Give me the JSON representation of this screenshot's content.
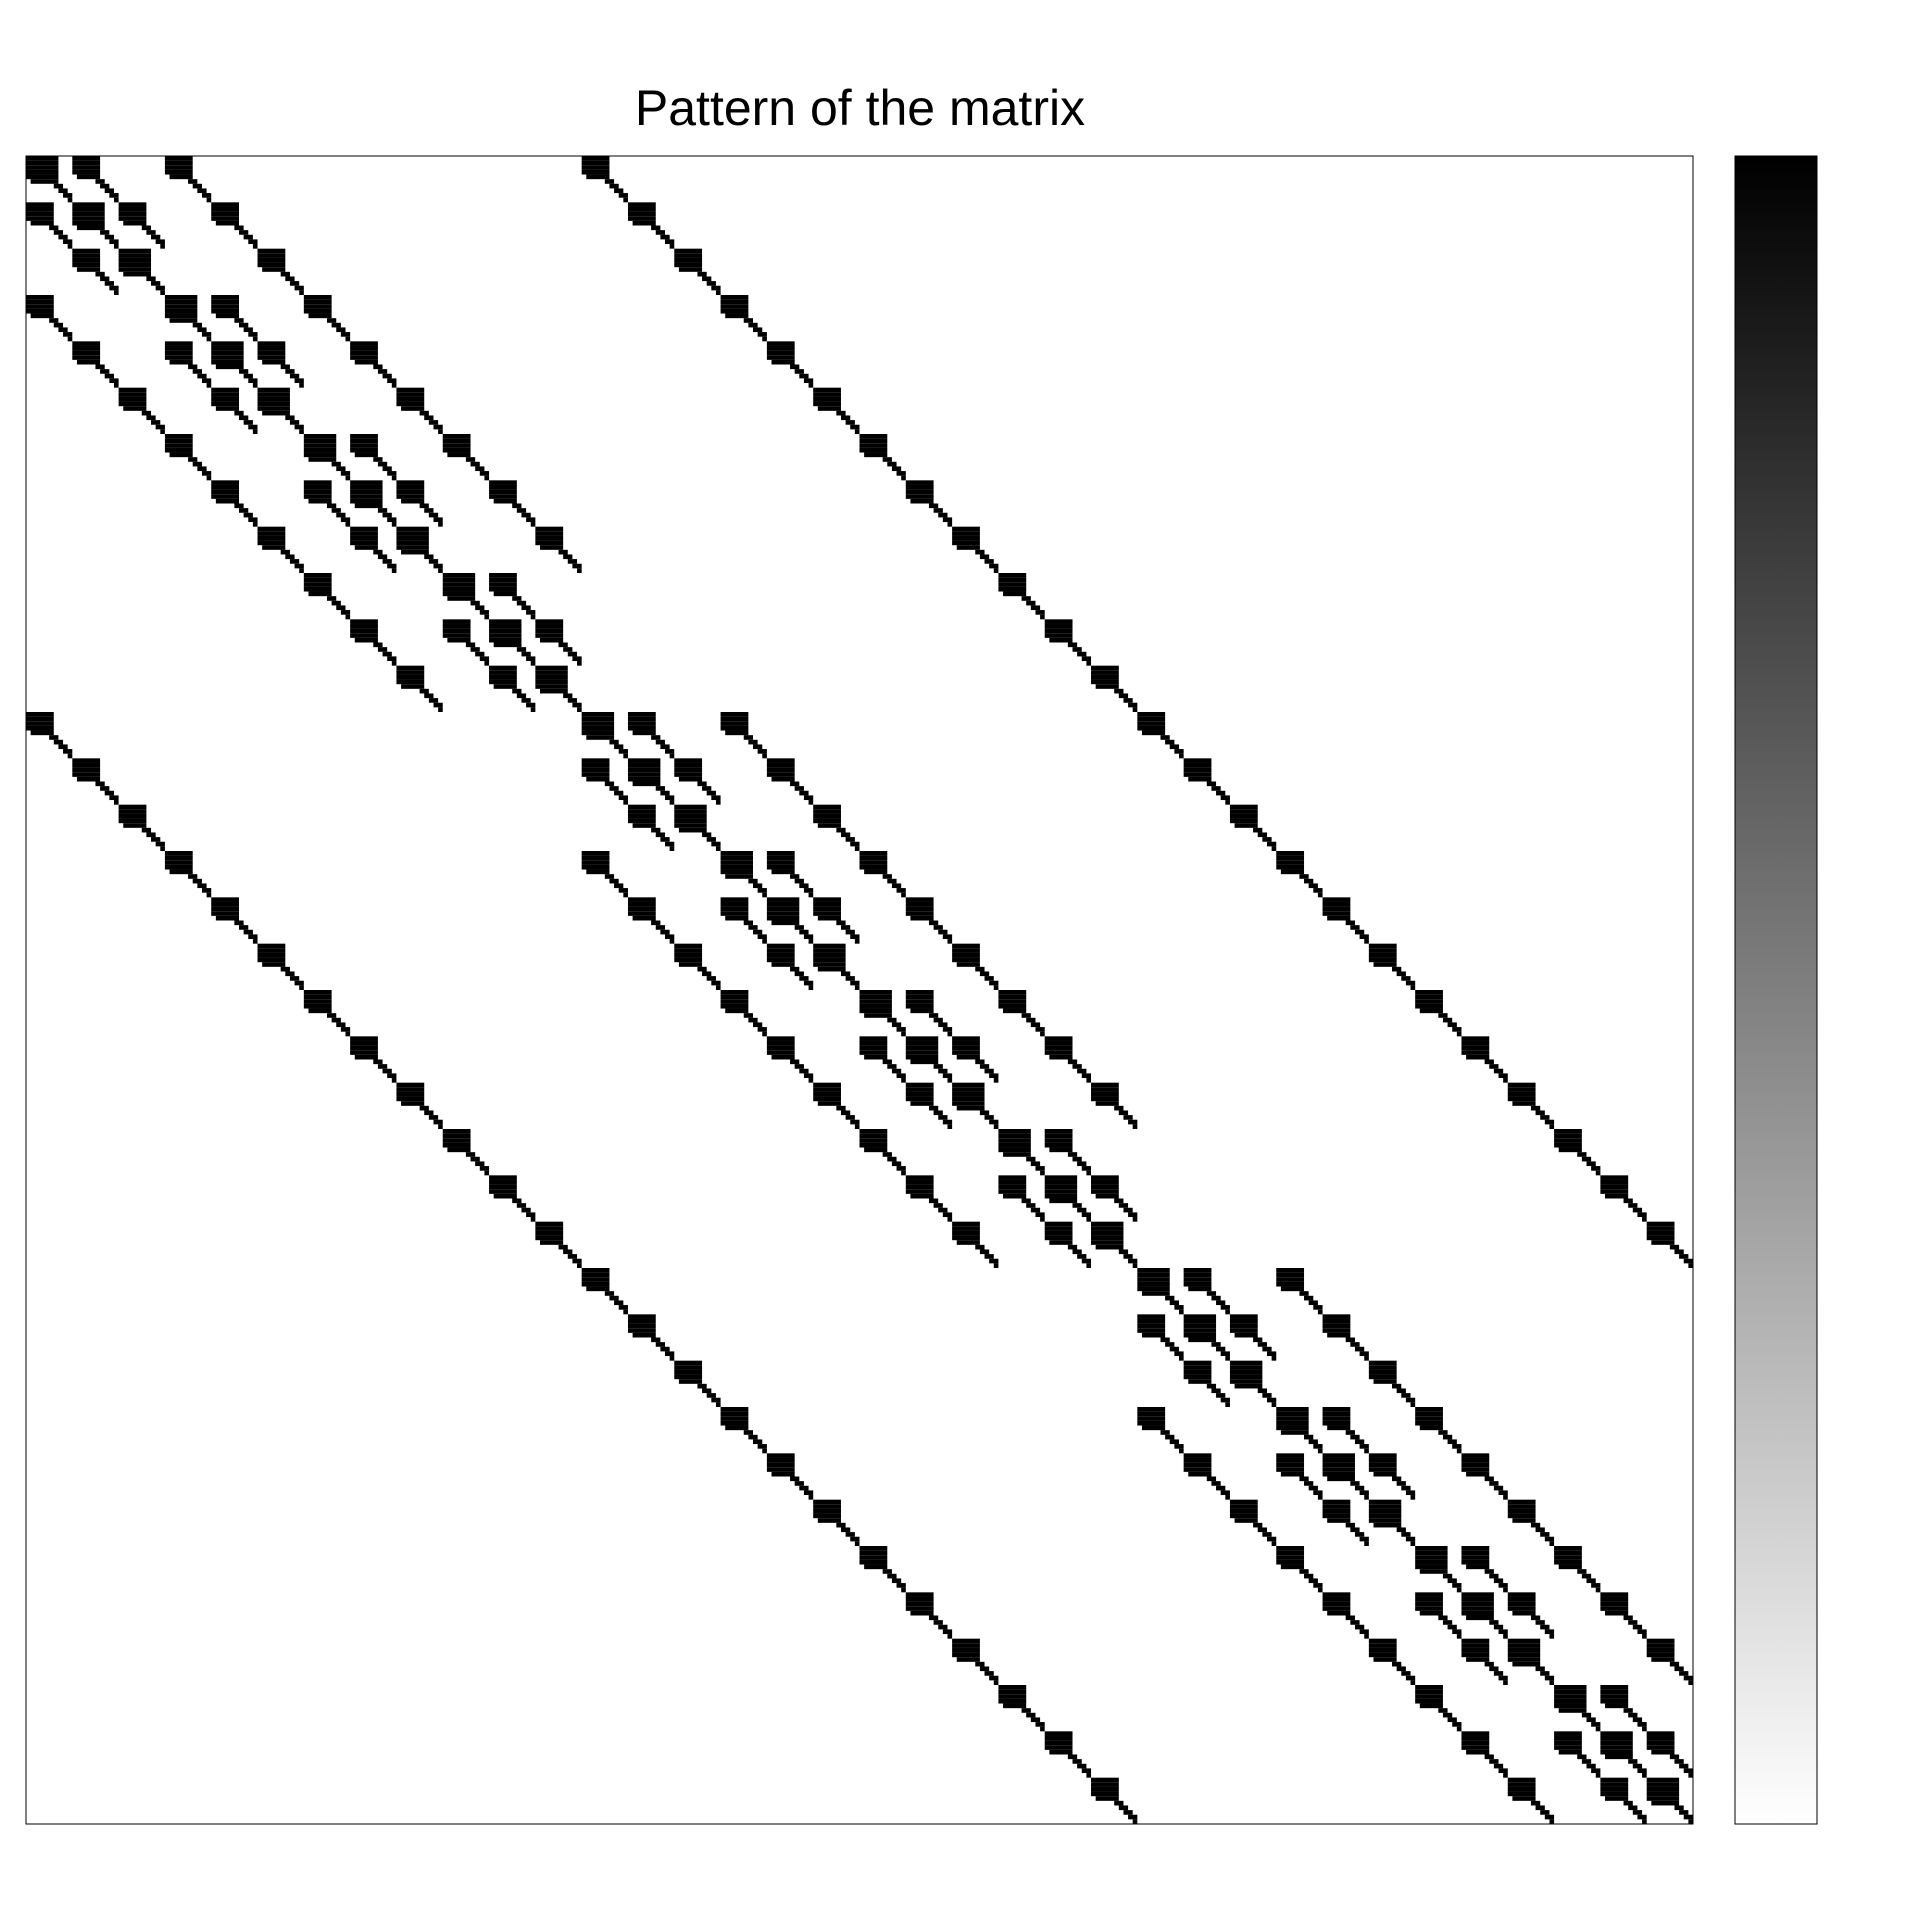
{
  "chart_data": {
    "type": "spy",
    "title": "Pattern of the matrix",
    "size": 360,
    "block_size": 10,
    "diagonal_pattern": [
      "#######...",
      "#######...",
      "#######...",
      "#######...",
      "#######...",
      ".######...",
      "......##..",
      ".......##.",
      "........##",
      ".........#"
    ],
    "offdiagonal_pattern": [
      "######....",
      "######....",
      "######....",
      "######....",
      ".#####....",
      ".....##...",
      "......##..",
      ".......##.",
      "........##",
      ".........#"
    ],
    "blocks": [
      [
        0,
        1,
        3,
        12
      ],
      [
        0,
        1,
        2,
        4,
        13
      ],
      [
        1,
        2,
        5,
        14
      ],
      [
        0,
        3,
        4,
        6,
        15
      ],
      [
        1,
        3,
        4,
        5,
        7,
        16
      ],
      [
        2,
        4,
        5,
        8,
        17
      ],
      [
        3,
        6,
        7,
        9,
        18
      ],
      [
        4,
        6,
        7,
        8,
        10,
        19
      ],
      [
        5,
        7,
        8,
        11,
        20
      ],
      [
        6,
        9,
        10,
        21
      ],
      [
        7,
        9,
        10,
        11,
        22
      ],
      [
        8,
        10,
        11,
        23
      ],
      [
        0,
        12,
        13,
        15,
        24
      ],
      [
        1,
        12,
        13,
        14,
        16,
        25
      ],
      [
        2,
        13,
        14,
        17,
        26
      ],
      [
        3,
        12,
        15,
        16,
        18,
        27
      ],
      [
        4,
        13,
        15,
        16,
        17,
        19,
        28
      ],
      [
        5,
        14,
        16,
        17,
        20,
        29
      ],
      [
        6,
        15,
        18,
        19,
        21,
        30
      ],
      [
        7,
        16,
        18,
        19,
        20,
        22,
        31
      ],
      [
        8,
        17,
        19,
        20,
        23,
        32
      ],
      [
        9,
        18,
        21,
        22,
        33
      ],
      [
        10,
        19,
        21,
        22,
        23,
        34
      ],
      [
        11,
        20,
        22,
        23,
        35
      ],
      [
        12,
        24,
        25,
        27
      ],
      [
        13,
        24,
        25,
        26,
        28
      ],
      [
        14,
        25,
        26,
        29
      ],
      [
        15,
        24,
        27,
        28,
        30
      ],
      [
        16,
        25,
        27,
        28,
        29,
        31
      ],
      [
        17,
        26,
        28,
        29,
        32
      ],
      [
        18,
        27,
        30,
        31,
        33
      ],
      [
        19,
        28,
        30,
        31,
        32,
        34
      ],
      [
        20,
        29,
        31,
        32,
        35
      ],
      [
        21,
        30,
        33,
        34
      ],
      [
        22,
        31,
        33,
        34,
        35
      ],
      [
        23,
        32,
        34,
        35
      ]
    ],
    "colorbar": [
      "#000000",
      "#ffffff"
    ]
  }
}
